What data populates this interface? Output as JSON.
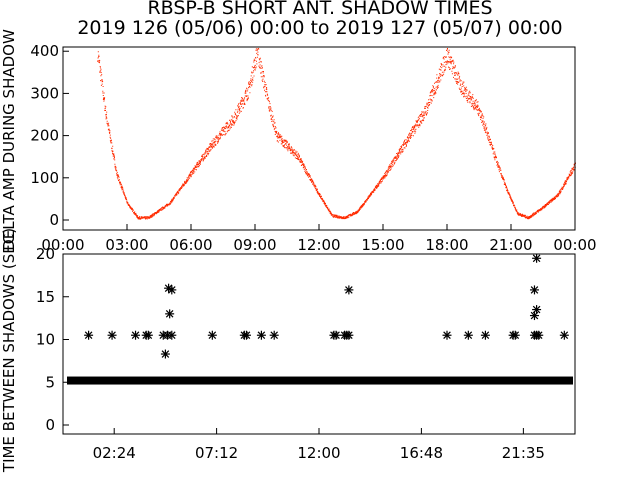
{
  "title_line1": "RBSP-B SHORT ANT. SHADOW TIMES",
  "title_line2": "2019 126 (05/06) 00:00 to 2019 127 (05/07) 00:00",
  "colors": {
    "trace": "#ff2a00",
    "axis": "#000000",
    "marker": "#000000"
  },
  "chart_data": [
    {
      "type": "scatter",
      "ylabel": "DELTA AMP DURING SHADOW",
      "ylim": [
        0,
        410
      ],
      "y_ticks": [
        "0",
        "100",
        "200",
        "300",
        "400"
      ],
      "x_ticks": [
        "00:00",
        "03:00",
        "06:00",
        "09:00",
        "12:00",
        "15:00",
        "18:00",
        "21:00",
        "00:00"
      ],
      "x_range_hours": [
        0,
        24
      ],
      "grid": false,
      "envelope": [
        {
          "t": 1.6,
          "v": 400
        },
        {
          "t": 2.0,
          "v": 250
        },
        {
          "t": 2.5,
          "v": 110
        },
        {
          "t": 3.0,
          "v": 40
        },
        {
          "t": 3.5,
          "v": 5
        },
        {
          "t": 4.0,
          "v": 5
        },
        {
          "t": 5.0,
          "v": 40
        },
        {
          "t": 6.0,
          "v": 110
        },
        {
          "t": 7.0,
          "v": 180
        },
        {
          "t": 8.0,
          "v": 240
        },
        {
          "t": 8.7,
          "v": 310
        },
        {
          "t": 9.1,
          "v": 400
        },
        {
          "t": 9.6,
          "v": 280
        },
        {
          "t": 10.0,
          "v": 200
        },
        {
          "t": 11.0,
          "v": 150
        },
        {
          "t": 12.0,
          "v": 60
        },
        {
          "t": 12.6,
          "v": 10
        },
        {
          "t": 13.2,
          "v": 5
        },
        {
          "t": 13.8,
          "v": 20
        },
        {
          "t": 15.0,
          "v": 100
        },
        {
          "t": 16.0,
          "v": 180
        },
        {
          "t": 17.0,
          "v": 260
        },
        {
          "t": 18.0,
          "v": 390
        },
        {
          "t": 18.6,
          "v": 320
        },
        {
          "t": 19.5,
          "v": 260
        },
        {
          "t": 20.3,
          "v": 140
        },
        {
          "t": 20.8,
          "v": 70
        },
        {
          "t": 21.3,
          "v": 15
        },
        {
          "t": 21.8,
          "v": 5
        },
        {
          "t": 22.5,
          "v": 30
        },
        {
          "t": 23.2,
          "v": 60
        },
        {
          "t": 24.0,
          "v": 130
        }
      ]
    },
    {
      "type": "scatter",
      "ylabel": "TIME BETWEEN SHADOWS (SEC)",
      "ylim": [
        0,
        20
      ],
      "y_ticks": [
        "0",
        "5",
        "10",
        "15",
        "20"
      ],
      "x_ticks": [
        "02:24",
        "07:12",
        "12:00",
        "16:48",
        "21:35"
      ],
      "x_tick_hours": [
        2.4,
        7.2,
        12.0,
        16.8,
        21.58
      ],
      "x_range_hours": [
        0,
        24
      ],
      "grid": false,
      "baseline_value": 5.2,
      "points": [
        {
          "t": 1.2,
          "v": 10.5
        },
        {
          "t": 2.3,
          "v": 10.5
        },
        {
          "t": 3.4,
          "v": 10.5
        },
        {
          "t": 3.9,
          "v": 10.5
        },
        {
          "t": 4.0,
          "v": 10.5
        },
        {
          "t": 4.7,
          "v": 10.5
        },
        {
          "t": 4.9,
          "v": 10.5
        },
        {
          "t": 5.1,
          "v": 10.5
        },
        {
          "t": 4.8,
          "v": 8.3
        },
        {
          "t": 5.0,
          "v": 13.0
        },
        {
          "t": 5.1,
          "v": 15.8
        },
        {
          "t": 4.95,
          "v": 16.0
        },
        {
          "t": 7.0,
          "v": 10.5
        },
        {
          "t": 8.5,
          "v": 10.5
        },
        {
          "t": 8.6,
          "v": 10.5
        },
        {
          "t": 9.3,
          "v": 10.5
        },
        {
          "t": 9.9,
          "v": 10.5
        },
        {
          "t": 12.7,
          "v": 10.5
        },
        {
          "t": 12.8,
          "v": 10.5
        },
        {
          "t": 13.2,
          "v": 10.5
        },
        {
          "t": 13.3,
          "v": 10.5
        },
        {
          "t": 13.4,
          "v": 10.5
        },
        {
          "t": 13.4,
          "v": 15.8
        },
        {
          "t": 18.0,
          "v": 10.5
        },
        {
          "t": 19.0,
          "v": 10.5
        },
        {
          "t": 19.8,
          "v": 10.5
        },
        {
          "t": 21.1,
          "v": 10.5
        },
        {
          "t": 21.2,
          "v": 10.5
        },
        {
          "t": 22.1,
          "v": 10.5
        },
        {
          "t": 22.2,
          "v": 10.5
        },
        {
          "t": 22.3,
          "v": 10.5
        },
        {
          "t": 22.1,
          "v": 12.8
        },
        {
          "t": 22.2,
          "v": 13.5
        },
        {
          "t": 22.1,
          "v": 15.8
        },
        {
          "t": 22.2,
          "v": 19.5
        },
        {
          "t": 23.5,
          "v": 10.5
        }
      ]
    }
  ]
}
